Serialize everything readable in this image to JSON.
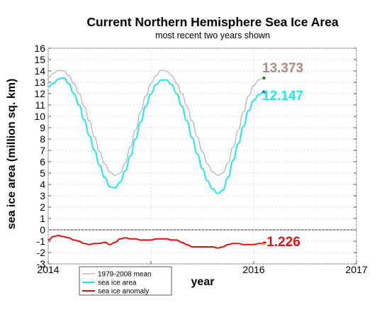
{
  "chart_data": {
    "type": "line",
    "title": "Current Northern Hemisphere Sea Ice Area",
    "subtitle": "most recent two years shown",
    "xlabel": "year",
    "ylabel": "sea ice area (million sq. km)",
    "xlim": [
      2014,
      2017
    ],
    "ylim": [
      -3,
      16
    ],
    "x_ticks": [
      "2014",
      "2015",
      "2016",
      "2017"
    ],
    "y_ticks": [
      "-3",
      "-2",
      "-1",
      "0",
      "1",
      "2",
      "3",
      "4",
      "5",
      "6",
      "7",
      "8",
      "9",
      "10",
      "11",
      "12",
      "13",
      "14",
      "15",
      "16"
    ],
    "grid": true,
    "legend_position": "bottom-left",
    "series": [
      {
        "name": "1979-2008 mean",
        "color": "#b8b0b0",
        "x": [
          2014.0,
          2014.05,
          2014.1,
          2014.15,
          2014.2,
          2014.25,
          2014.3,
          2014.35,
          2014.4,
          2014.45,
          2014.5,
          2014.55,
          2014.6,
          2014.65,
          2014.7,
          2014.75,
          2014.8,
          2014.85,
          2014.9,
          2014.95,
          2015.0,
          2015.05,
          2015.1,
          2015.15,
          2015.2,
          2015.25,
          2015.3,
          2015.35,
          2015.4,
          2015.45,
          2015.5,
          2015.55,
          2015.6,
          2015.65,
          2015.7,
          2015.75,
          2015.8,
          2015.85,
          2015.9,
          2015.95,
          2016.0,
          2016.05,
          2016.1
        ],
        "y": [
          13.4,
          13.8,
          14.05,
          14.0,
          13.6,
          12.9,
          12.0,
          10.9,
          9.6,
          8.2,
          6.9,
          5.8,
          5.1,
          4.8,
          5.0,
          5.9,
          7.3,
          8.8,
          10.4,
          11.8,
          12.9,
          13.6,
          14.05,
          14.0,
          13.6,
          12.9,
          12.0,
          10.9,
          9.6,
          8.2,
          6.9,
          5.8,
          5.1,
          4.8,
          5.0,
          5.9,
          7.3,
          8.8,
          10.4,
          11.8,
          12.7,
          13.2,
          13.37
        ]
      },
      {
        "name": "sea ice area",
        "color": "#1ee8e8",
        "x": [
          2014.0,
          2014.05,
          2014.1,
          2014.15,
          2014.2,
          2014.25,
          2014.3,
          2014.35,
          2014.4,
          2014.45,
          2014.5,
          2014.55,
          2014.6,
          2014.65,
          2014.7,
          2014.75,
          2014.8,
          2014.85,
          2014.9,
          2014.95,
          2015.0,
          2015.05,
          2015.1,
          2015.15,
          2015.2,
          2015.25,
          2015.3,
          2015.35,
          2015.4,
          2015.45,
          2015.5,
          2015.55,
          2015.6,
          2015.65,
          2015.7,
          2015.75,
          2015.8,
          2015.85,
          2015.9,
          2015.95,
          2016.0,
          2016.05,
          2016.1
        ],
        "y": [
          12.6,
          12.9,
          13.3,
          13.4,
          12.9,
          12.0,
          11.0,
          9.7,
          8.3,
          7.0,
          5.7,
          4.6,
          3.8,
          3.7,
          4.2,
          5.2,
          6.5,
          8.0,
          9.5,
          10.9,
          12.0,
          12.8,
          13.2,
          13.2,
          12.8,
          12.0,
          10.9,
          9.6,
          8.1,
          6.7,
          5.4,
          4.3,
          3.6,
          3.2,
          3.5,
          4.6,
          6.1,
          7.6,
          9.1,
          10.5,
          11.4,
          11.9,
          12.147
        ]
      },
      {
        "name": "sea ice anomaly",
        "color": "#e01010",
        "x": [
          2014.0,
          2014.05,
          2014.1,
          2014.15,
          2014.2,
          2014.25,
          2014.3,
          2014.35,
          2014.4,
          2014.45,
          2014.5,
          2014.55,
          2014.6,
          2014.65,
          2014.7,
          2014.75,
          2014.8,
          2014.85,
          2014.9,
          2014.95,
          2015.0,
          2015.05,
          2015.1,
          2015.15,
          2015.2,
          2015.25,
          2015.3,
          2015.35,
          2015.4,
          2015.45,
          2015.5,
          2015.55,
          2015.6,
          2015.65,
          2015.7,
          2015.75,
          2015.8,
          2015.85,
          2015.9,
          2015.95,
          2016.0,
          2016.05,
          2016.1
        ],
        "y": [
          -0.9,
          -0.6,
          -0.5,
          -0.6,
          -0.7,
          -0.9,
          -1.0,
          -1.2,
          -1.3,
          -1.2,
          -1.2,
          -1.1,
          -1.3,
          -1.1,
          -0.8,
          -0.7,
          -0.8,
          -0.8,
          -0.9,
          -0.9,
          -0.9,
          -0.8,
          -0.8,
          -0.8,
          -0.9,
          -0.9,
          -1.1,
          -1.3,
          -1.5,
          -1.5,
          -1.5,
          -1.5,
          -1.5,
          -1.6,
          -1.5,
          -1.3,
          -1.2,
          -1.2,
          -1.3,
          -1.3,
          -1.3,
          -1.2,
          -1.226
        ]
      }
    ],
    "annotations": [
      {
        "text": "13.373",
        "value": 13.373,
        "x": 2016.1,
        "marker_color": "#1a8a1a",
        "text_color": "#b08884"
      },
      {
        "text": "12.147",
        "value": 12.147,
        "x": 2016.1,
        "marker_color": "#1a1aa0",
        "text_color": "#1ee8e8"
      },
      {
        "text": "-1.226",
        "value": -1.226,
        "x": 2016.1,
        "marker_color": "#f0a020",
        "text_color": "#e01010"
      }
    ]
  }
}
